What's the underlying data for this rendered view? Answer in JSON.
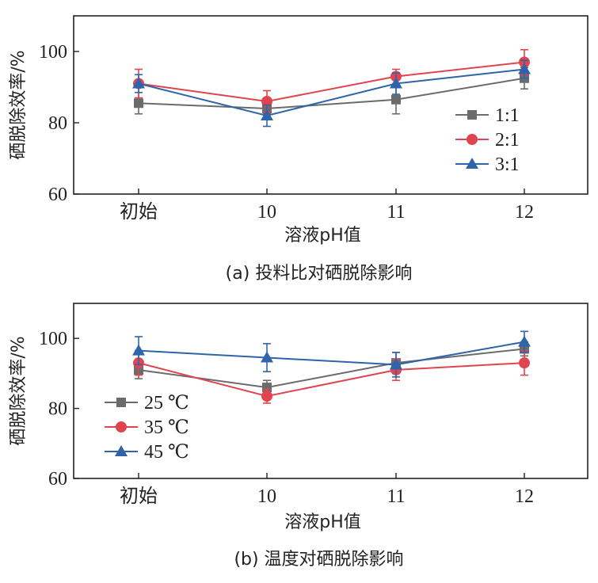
{
  "chart_data": [
    {
      "type": "line",
      "title": "",
      "caption": "(a) 投料比对硒脱除影响",
      "xlabel": "溶液pH值",
      "ylabel": "硒脱除效率/%",
      "categories": [
        "初始",
        "10",
        "11",
        "12"
      ],
      "ylim": [
        60,
        110
      ],
      "yticks": [
        60,
        80,
        100
      ],
      "legend_position": "bottom-right",
      "series": [
        {
          "name": "1:1",
          "color": "#6b6b6b",
          "marker": "square",
          "values": [
            85.5,
            84.0,
            86.5,
            92.5
          ],
          "errors": [
            3.0,
            1.5,
            4.0,
            3.0
          ]
        },
        {
          "name": "2:1",
          "color": "#e0454f",
          "marker": "circle",
          "values": [
            91.0,
            86.0,
            93.0,
            97.0
          ],
          "errors": [
            4.0,
            3.0,
            2.0,
            3.5
          ]
        },
        {
          "name": "3:1",
          "color": "#2f64aa",
          "marker": "triangle",
          "values": [
            91.0,
            82.0,
            91.0,
            95.0
          ],
          "errors": [
            2.5,
            3.0,
            3.0,
            2.5
          ]
        }
      ]
    },
    {
      "type": "line",
      "title": "",
      "caption": "(b) 温度对硒脱除影响",
      "xlabel": "溶液pH值",
      "ylabel": "硒脱除效率/%",
      "categories": [
        "初始",
        "10",
        "11",
        "12"
      ],
      "ylim": [
        60,
        110
      ],
      "yticks": [
        60,
        80,
        100
      ],
      "legend_position": "bottom-left",
      "series": [
        {
          "name": "25 ℃",
          "color": "#6b6b6b",
          "marker": "square",
          "values": [
            91.0,
            86.0,
            93.0,
            97.0
          ],
          "errors": [
            2.5,
            2.0,
            3.0,
            2.0
          ]
        },
        {
          "name": "35 ℃",
          "color": "#e0454f",
          "marker": "circle",
          "values": [
            93.0,
            83.5,
            91.0,
            93.0
          ],
          "errors": [
            3.5,
            2.0,
            3.0,
            3.5
          ]
        },
        {
          "name": "45 ℃",
          "color": "#2f64aa",
          "marker": "triangle",
          "values": [
            96.5,
            94.5,
            92.5,
            99.0
          ],
          "errors": [
            4.0,
            4.0,
            3.5,
            3.0
          ]
        }
      ]
    }
  ]
}
